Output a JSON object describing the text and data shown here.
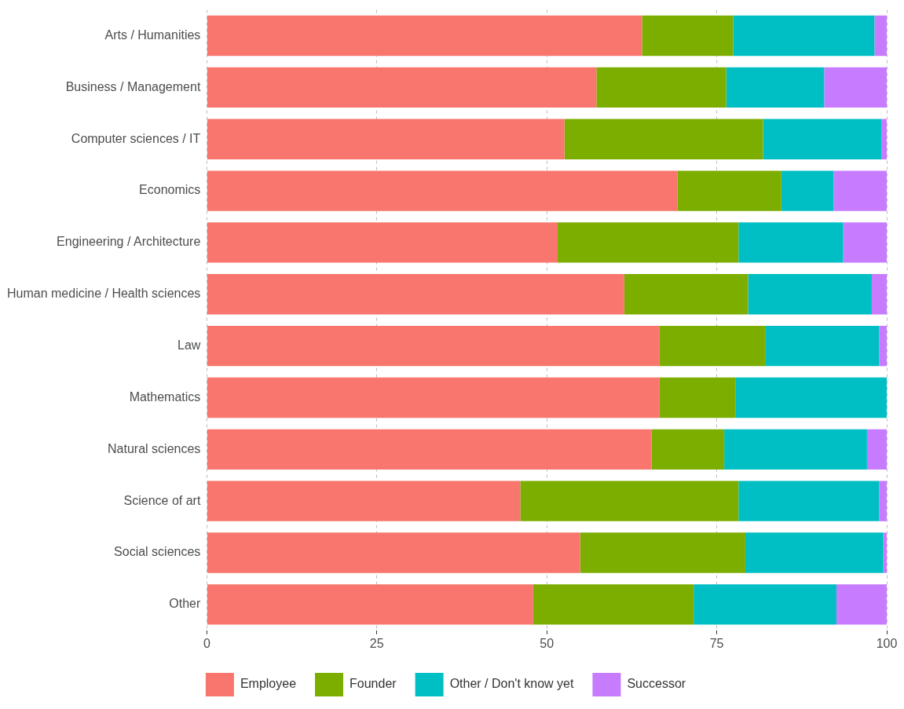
{
  "chart_data": {
    "type": "bar",
    "orientation": "horizontal",
    "stacked": true,
    "categories": [
      "Arts / Humanities",
      "Business / Management",
      "Computer sciences / IT",
      "Economics",
      "Engineering / Architecture",
      "Human medicine / Health sciences",
      "Law",
      "Mathematics",
      "Natural sciences",
      "Science of art",
      "Social sciences",
      "Other"
    ],
    "series": [
      {
        "name": "Employee",
        "color": "#f8766d",
        "values": [
          64.0,
          57.3,
          52.6,
          69.2,
          51.6,
          61.4,
          66.6,
          66.6,
          65.4,
          46.1,
          54.9,
          48.0
        ]
      },
      {
        "name": "Founder",
        "color": "#7cae00",
        "values": [
          13.4,
          19.1,
          29.2,
          15.3,
          26.6,
          18.2,
          15.6,
          11.2,
          10.7,
          32.1,
          24.3,
          23.6
        ]
      },
      {
        "name": "Other / Don't know yet",
        "color": "#00bfc4",
        "values": [
          20.8,
          14.4,
          17.4,
          7.7,
          15.4,
          18.2,
          16.7,
          22.2,
          21.0,
          20.7,
          20.3,
          21.0
        ]
      },
      {
        "name": "Successor",
        "color": "#c77cff",
        "values": [
          1.8,
          9.2,
          0.8,
          7.8,
          6.4,
          2.2,
          1.1,
          0,
          2.9,
          1.1,
          0.5,
          7.4
        ]
      }
    ],
    "xlim": [
      0,
      100
    ],
    "xticks": [
      0,
      25,
      50,
      75,
      100
    ],
    "grid": "x",
    "legend": "bottom"
  }
}
